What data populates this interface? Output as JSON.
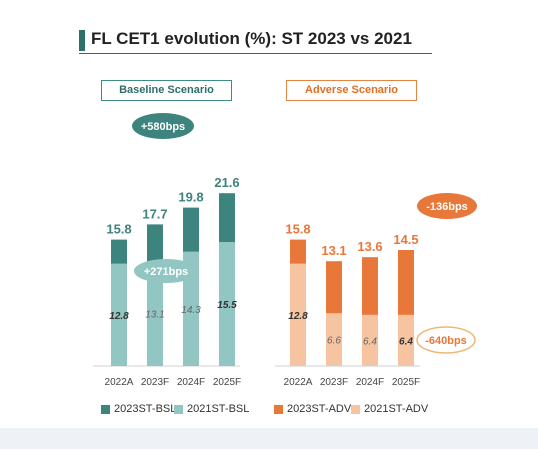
{
  "title": "FL CET1 evolution (%): ST 2023 vs 2021",
  "scenarios": {
    "baseline": "Baseline Scenario",
    "adverse": "Adverse Scenario"
  },
  "colors": {
    "bsl_2023": "#3d837e",
    "bsl_2021": "#92c6c2",
    "adv_2023": "#e8773a",
    "adv_2021": "#f6c4a0",
    "bsl_label": "#3d837e",
    "adv_label": "#e8773a"
  },
  "annotations": {
    "bsl_top": "+580bps",
    "bsl_mid": "+271bps",
    "adv_top": "-136bps",
    "adv_mid": "-640bps"
  },
  "legend": [
    {
      "label": "2023ST-BSL",
      "color": "#3d837e"
    },
    {
      "label": "2021ST-BSL",
      "color": "#92c6c2"
    },
    {
      "label": "2023ST-ADV",
      "color": "#e8773a"
    },
    {
      "label": "2021ST-ADV",
      "color": "#f6c4a0"
    }
  ],
  "chart_data": [
    {
      "type": "bar",
      "title": "Baseline Scenario",
      "categories": [
        "2022A",
        "2023F",
        "2024F",
        "2025F"
      ],
      "ylim": [
        0,
        25
      ],
      "series": [
        {
          "name": "2023ST-BSL",
          "values": [
            15.8,
            17.7,
            19.8,
            21.6
          ]
        },
        {
          "name": "2021ST-BSL",
          "values": [
            12.8,
            13.1,
            14.3,
            15.5
          ]
        }
      ]
    },
    {
      "type": "bar",
      "title": "Adverse Scenario",
      "categories": [
        "2022A",
        "2023F",
        "2024F",
        "2025F"
      ],
      "ylim": [
        0,
        25
      ],
      "series": [
        {
          "name": "2023ST-ADV",
          "values": [
            15.8,
            13.1,
            13.6,
            14.5
          ]
        },
        {
          "name": "2021ST-ADV",
          "values": [
            12.8,
            6.6,
            6.4,
            6.4
          ]
        }
      ]
    }
  ]
}
